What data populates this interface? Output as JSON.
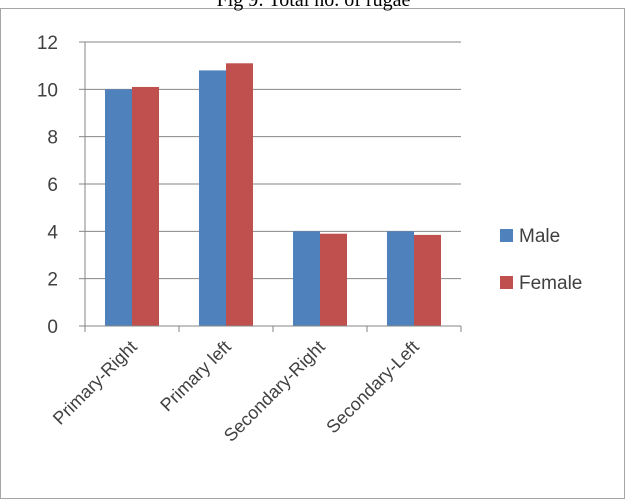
{
  "chart_data": {
    "type": "bar",
    "title": "Fig 9: Total no. of rugae",
    "categories": [
      "Primary-Right",
      "Primary left",
      "Secondary-Right",
      "Secondary-Left"
    ],
    "series": [
      {
        "name": "Male",
        "color": "#4f81bd",
        "values": [
          10.0,
          10.8,
          4.0,
          4.0
        ]
      },
      {
        "name": "Female",
        "color": "#c0504d",
        "values": [
          10.1,
          11.1,
          3.9,
          3.85
        ]
      }
    ],
    "ylim": [
      0,
      12
    ],
    "yticks": [
      "0",
      "2",
      "4",
      "6",
      "8",
      "10",
      "12"
    ],
    "grid": true,
    "legend": "right"
  }
}
